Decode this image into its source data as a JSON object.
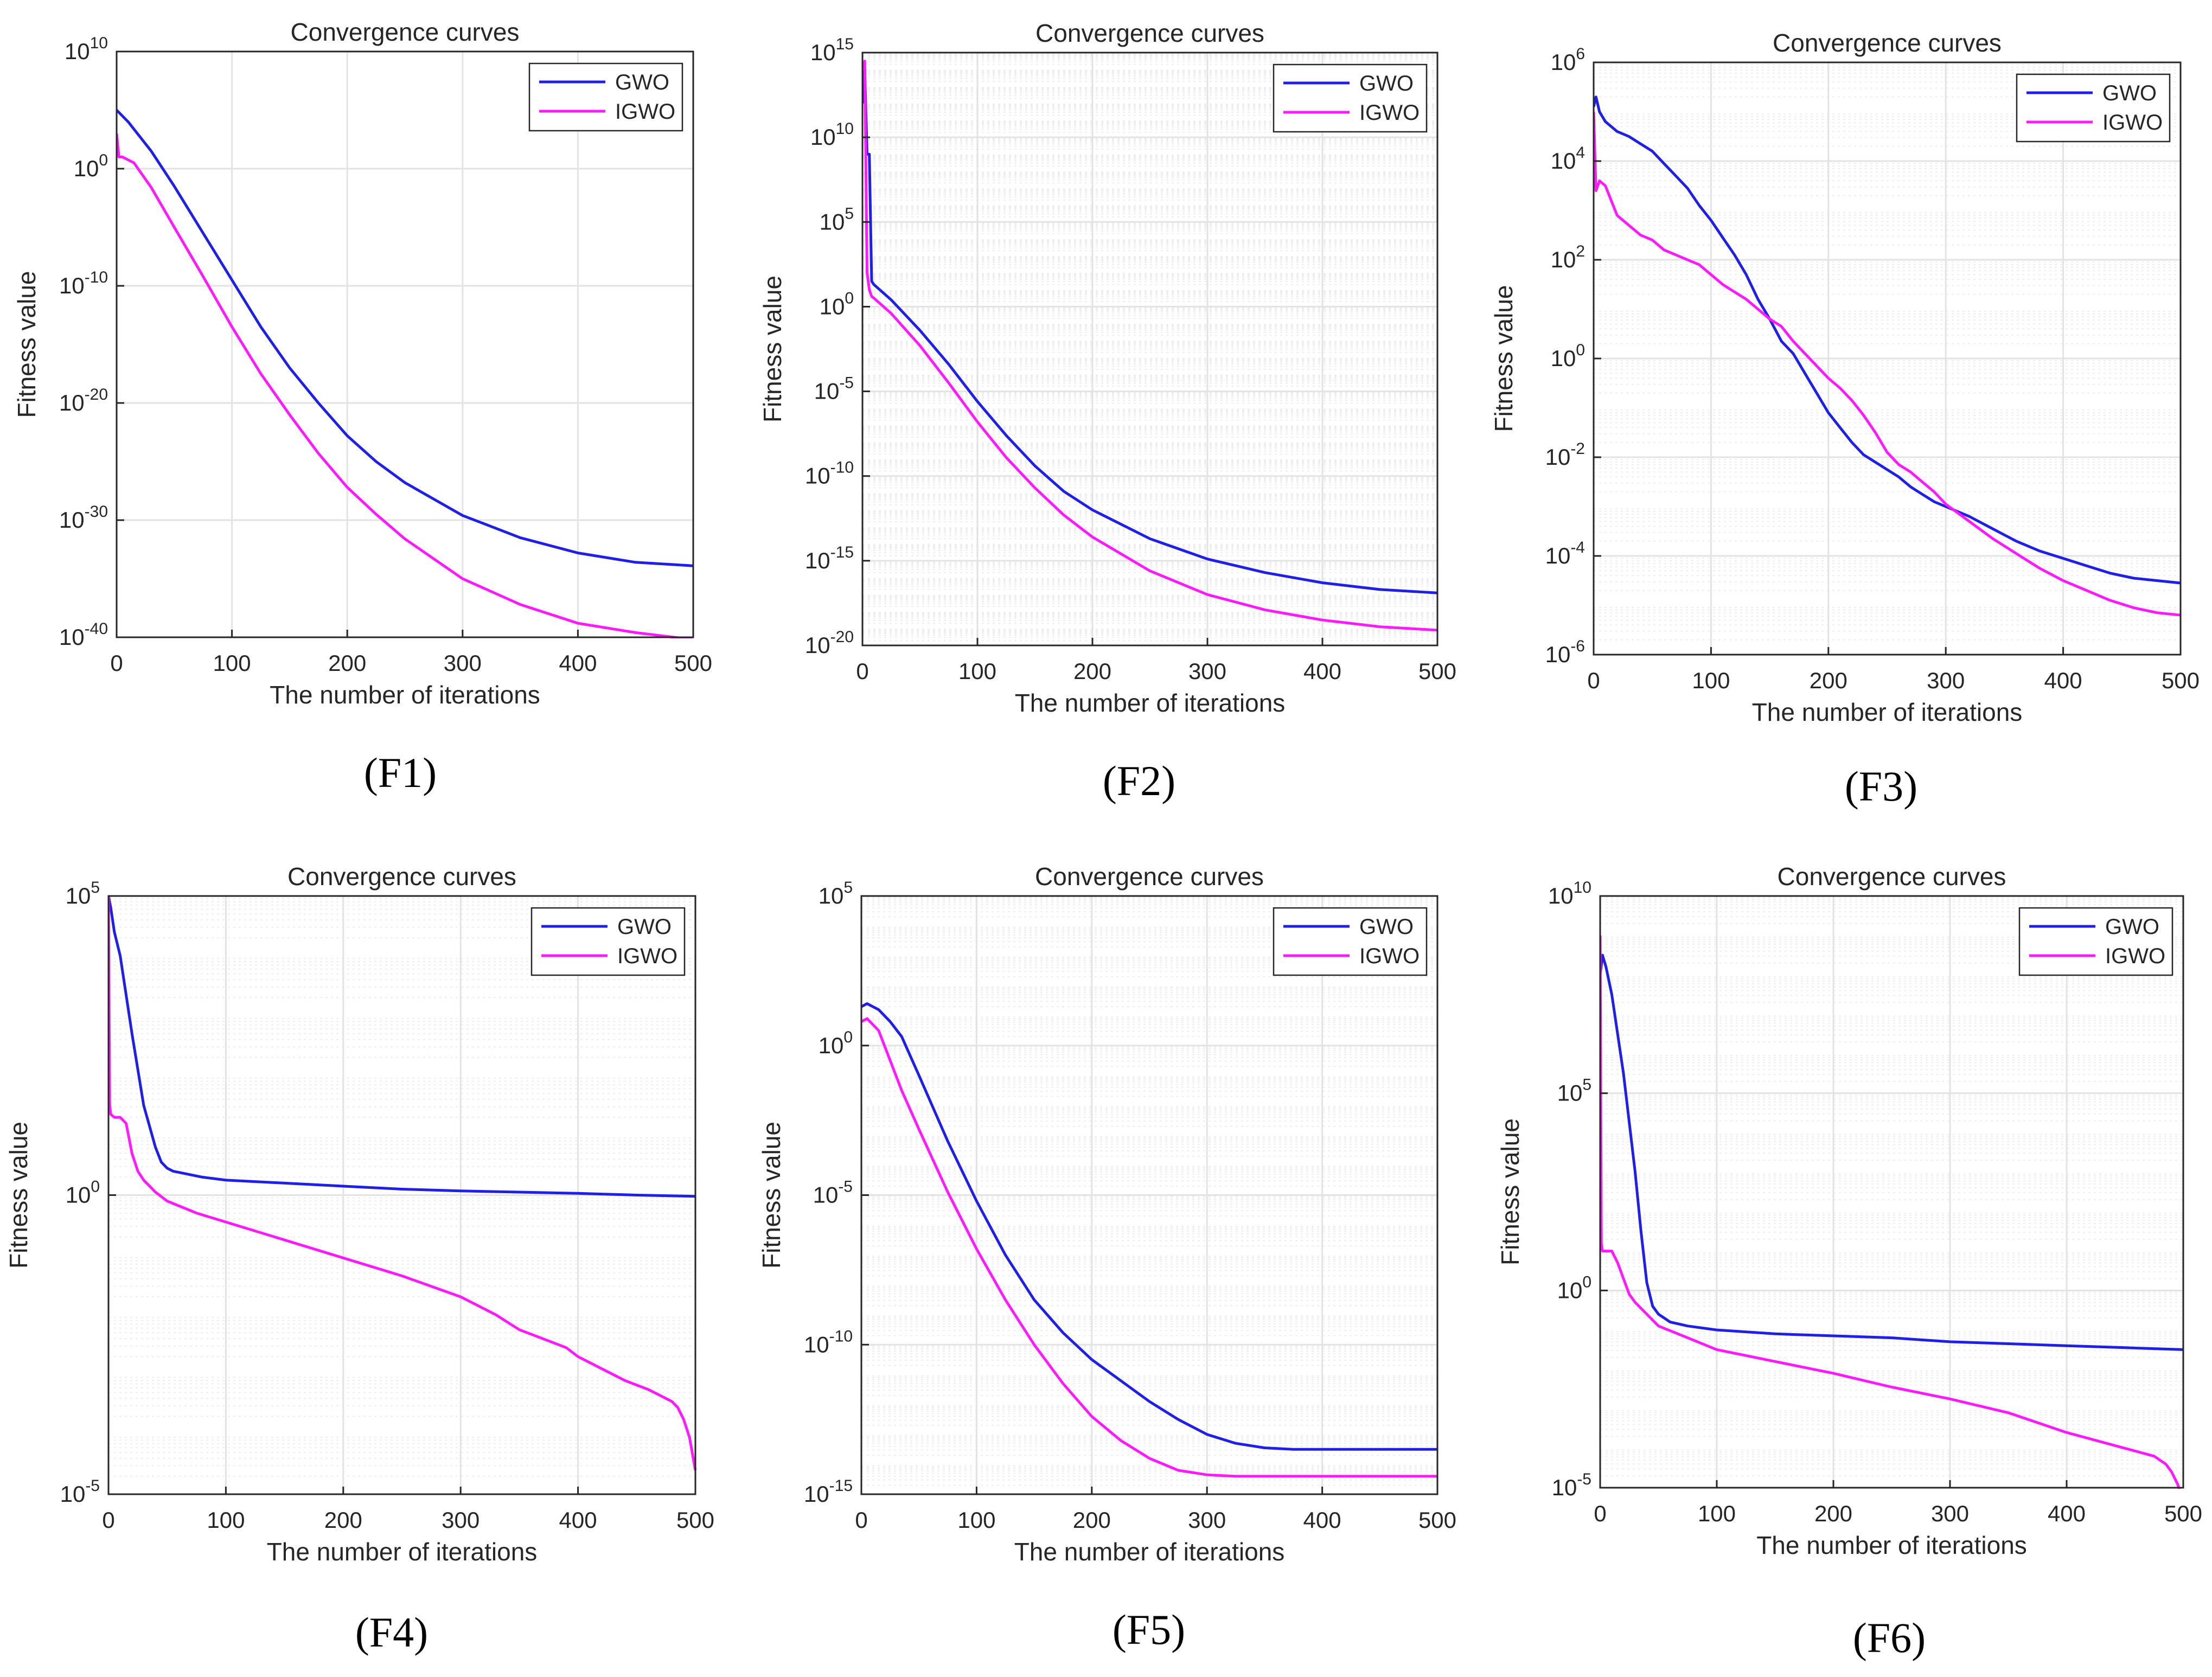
{
  "figure": {
    "captions": [
      "(F1)",
      "(F2)",
      "(F3)",
      "(F4)",
      "(F5)",
      "(F6)"
    ]
  },
  "colors": {
    "gwo": "#1f1fe6",
    "igwo": "#ff1aff",
    "grid": "#e3e3e3",
    "axis": "#262626",
    "text": "#262626"
  },
  "chart_data": [
    {
      "id": "F1",
      "type": "line",
      "title": "Convergence curves",
      "xlabel": "The number of iterations",
      "ylabel": "Fitness value",
      "yscale": "log",
      "xlim": [
        0,
        500
      ],
      "ylim_exp": [
        -40,
        10
      ],
      "xticks": [
        0,
        100,
        200,
        300,
        400,
        500
      ],
      "yticks_exp": [
        10,
        0,
        -10,
        -20,
        -30,
        -40
      ],
      "minor_grid": false,
      "legend": "top-right",
      "series": [
        {
          "name": "GWO",
          "x": [
            0,
            10,
            30,
            50,
            75,
            100,
            125,
            150,
            175,
            200,
            225,
            250,
            300,
            350,
            400,
            450,
            500
          ],
          "log10y": [
            5,
            4,
            1.5,
            -1.5,
            -5.5,
            -9.5,
            -13.5,
            -17,
            -20,
            -22.8,
            -25,
            -26.8,
            -29.6,
            -31.5,
            -32.8,
            -33.6,
            -33.9
          ]
        },
        {
          "name": "IGWO",
          "x": [
            0,
            2,
            5,
            15,
            30,
            50,
            75,
            100,
            125,
            150,
            175,
            200,
            225,
            250,
            300,
            350,
            400,
            450,
            500
          ],
          "log10y": [
            3,
            1,
            1,
            0.5,
            -1.6,
            -5,
            -9.2,
            -13.5,
            -17.5,
            -21,
            -24.3,
            -27.2,
            -29.5,
            -31.6,
            -35,
            -37.2,
            -38.8,
            -39.6,
            -40.2
          ]
        }
      ]
    },
    {
      "id": "F2",
      "type": "line",
      "title": "Convergence curves",
      "xlabel": "The number of iterations",
      "ylabel": "Fitness value",
      "yscale": "log",
      "xlim": [
        0,
        500
      ],
      "ylim_exp": [
        -20,
        15
      ],
      "xticks": [
        0,
        100,
        200,
        300,
        400,
        500
      ],
      "yticks_exp": [
        15,
        10,
        5,
        0,
        -5,
        -10,
        -15,
        -20
      ],
      "minor_grid": true,
      "legend": "top-right",
      "series": [
        {
          "name": "GWO",
          "x": [
            0,
            2,
            4,
            6,
            8,
            10,
            25,
            50,
            75,
            100,
            125,
            150,
            175,
            200,
            250,
            300,
            350,
            400,
            450,
            500
          ],
          "log10y": [
            12,
            14,
            9,
            9,
            1.5,
            1.3,
            0.4,
            -1.4,
            -3.4,
            -5.6,
            -7.6,
            -9.4,
            -10.9,
            -12,
            -13.7,
            -14.9,
            -15.7,
            -16.3,
            -16.7,
            -16.9
          ]
        },
        {
          "name": "IGWO",
          "x": [
            0,
            2,
            4,
            6,
            8,
            10,
            25,
            50,
            75,
            100,
            125,
            150,
            175,
            200,
            250,
            300,
            350,
            400,
            450,
            500
          ],
          "log10y": [
            14,
            14.5,
            2,
            1,
            0.6,
            0.5,
            -0.4,
            -2.3,
            -4.5,
            -6.8,
            -8.9,
            -10.7,
            -12.3,
            -13.6,
            -15.6,
            -17,
            -17.9,
            -18.5,
            -18.9,
            -19.1
          ]
        }
      ]
    },
    {
      "id": "F3",
      "type": "line",
      "title": "Convergence curves",
      "xlabel": "The number of iterations",
      "ylabel": "Fitness value",
      "yscale": "log",
      "xlim": [
        0,
        500
      ],
      "ylim_exp": [
        -6,
        6
      ],
      "xticks": [
        0,
        100,
        200,
        300,
        400,
        500
      ],
      "yticks_exp": [
        6,
        4,
        2,
        0,
        -2,
        -4,
        -6
      ],
      "minor_grid": true,
      "legend": "top-right",
      "series": [
        {
          "name": "GWO",
          "x": [
            0,
            2,
            5,
            10,
            20,
            30,
            40,
            50,
            60,
            70,
            80,
            90,
            100,
            110,
            120,
            130,
            140,
            150,
            160,
            170,
            180,
            190,
            200,
            210,
            220,
            230,
            240,
            250,
            260,
            270,
            280,
            290,
            300,
            320,
            340,
            360,
            380,
            400,
            420,
            440,
            460,
            480,
            500
          ],
          "log10y": [
            5.1,
            5.3,
            5,
            4.8,
            4.6,
            4.5,
            4.35,
            4.2,
            3.95,
            3.7,
            3.45,
            3.1,
            2.8,
            2.45,
            2.1,
            1.7,
            1.2,
            0.8,
            0.35,
            0.1,
            -0.3,
            -0.7,
            -1.1,
            -1.4,
            -1.7,
            -1.95,
            -2.1,
            -2.25,
            -2.4,
            -2.6,
            -2.75,
            -2.9,
            -3,
            -3.2,
            -3.45,
            -3.7,
            -3.9,
            -4.05,
            -4.2,
            -4.35,
            -4.45,
            -4.5,
            -4.55
          ]
        },
        {
          "name": "IGWO",
          "x": [
            0,
            2,
            5,
            10,
            20,
            30,
            40,
            50,
            60,
            70,
            80,
            90,
            100,
            110,
            120,
            130,
            140,
            150,
            160,
            170,
            180,
            190,
            200,
            210,
            220,
            230,
            240,
            250,
            260,
            270,
            280,
            290,
            300,
            320,
            340,
            360,
            380,
            400,
            420,
            440,
            460,
            480,
            500
          ],
          "log10y": [
            5,
            3.4,
            3.6,
            3.5,
            2.9,
            2.7,
            2.5,
            2.4,
            2.2,
            2.1,
            2,
            1.9,
            1.7,
            1.5,
            1.35,
            1.2,
            1,
            0.8,
            0.65,
            0.35,
            0.1,
            -0.15,
            -0.4,
            -0.6,
            -0.85,
            -1.15,
            -1.5,
            -1.9,
            -2.15,
            -2.3,
            -2.5,
            -2.7,
            -2.95,
            -3.3,
            -3.65,
            -3.95,
            -4.25,
            -4.5,
            -4.7,
            -4.9,
            -5.05,
            -5.15,
            -5.2
          ]
        }
      ]
    },
    {
      "id": "F4",
      "type": "line",
      "title": "Convergence curves",
      "xlabel": "The number of iterations",
      "ylabel": "Fitness value",
      "yscale": "log",
      "xlim": [
        0,
        500
      ],
      "ylim_exp": [
        -5,
        5
      ],
      "xticks": [
        0,
        100,
        200,
        300,
        400,
        500
      ],
      "yticks_exp": [
        5,
        0,
        -5
      ],
      "minor_grid": true,
      "legend": "top-right",
      "series": [
        {
          "name": "GWO",
          "x": [
            0,
            2,
            5,
            10,
            20,
            30,
            40,
            45,
            50,
            55,
            60,
            80,
            100,
            150,
            200,
            250,
            300,
            350,
            400,
            450,
            500
          ],
          "log10y": [
            5,
            4.8,
            4.4,
            4,
            2.7,
            1.5,
            0.8,
            0.55,
            0.45,
            0.4,
            0.38,
            0.3,
            0.25,
            0.2,
            0.15,
            0.1,
            0.07,
            0.05,
            0.03,
            0,
            -0.02
          ]
        },
        {
          "name": "IGWO",
          "x": [
            0,
            1,
            2,
            5,
            10,
            15,
            20,
            25,
            30,
            40,
            50,
            75,
            100,
            150,
            200,
            250,
            300,
            330,
            350,
            370,
            390,
            400,
            420,
            440,
            460,
            470,
            480,
            485,
            490,
            495,
            500
          ],
          "log10y": [
            5,
            1.5,
            1.35,
            1.3,
            1.3,
            1.2,
            0.7,
            0.4,
            0.25,
            0.05,
            -0.1,
            -0.3,
            -0.45,
            -0.75,
            -1.05,
            -1.35,
            -1.7,
            -2,
            -2.25,
            -2.4,
            -2.55,
            -2.7,
            -2.9,
            -3.1,
            -3.25,
            -3.35,
            -3.45,
            -3.55,
            -3.75,
            -4.05,
            -4.6
          ]
        }
      ]
    },
    {
      "id": "F5",
      "type": "line",
      "title": "Convergence curves",
      "xlabel": "The number of iterations",
      "ylabel": "Fitness value",
      "yscale": "log",
      "xlim": [
        0,
        500
      ],
      "ylim_exp": [
        -15,
        5
      ],
      "xticks": [
        0,
        100,
        200,
        300,
        400,
        500
      ],
      "yticks_exp": [
        5,
        0,
        -5,
        -10,
        -15
      ],
      "minor_grid": true,
      "legend": "top-right",
      "series": [
        {
          "name": "GWO",
          "x": [
            0,
            5,
            15,
            25,
            35,
            50,
            75,
            100,
            125,
            150,
            175,
            200,
            225,
            250,
            275,
            300,
            325,
            350,
            375,
            400,
            450,
            500
          ],
          "log10y": [
            1.3,
            1.4,
            1.2,
            0.8,
            0.3,
            -1,
            -3.2,
            -5.2,
            -7,
            -8.5,
            -9.6,
            -10.5,
            -11.2,
            -11.9,
            -12.5,
            -13,
            -13.3,
            -13.45,
            -13.5,
            -13.5,
            -13.5,
            -13.5
          ]
        },
        {
          "name": "IGWO",
          "x": [
            0,
            5,
            15,
            25,
            35,
            50,
            75,
            100,
            125,
            150,
            175,
            200,
            225,
            250,
            275,
            300,
            325,
            350,
            400,
            450,
            500
          ],
          "log10y": [
            0.8,
            0.9,
            0.5,
            -0.5,
            -1.5,
            -2.8,
            -4.9,
            -6.8,
            -8.5,
            -10,
            -11.3,
            -12.4,
            -13.2,
            -13.8,
            -14.2,
            -14.35,
            -14.4,
            -14.4,
            -14.4,
            -14.4,
            -14.4
          ]
        }
      ]
    },
    {
      "id": "F6",
      "type": "line",
      "title": "Convergence curves",
      "xlabel": "The number of iterations",
      "ylabel": "Fitness value",
      "yscale": "log",
      "xlim": [
        0,
        500
      ],
      "ylim_exp": [
        -5,
        10
      ],
      "xticks": [
        0,
        100,
        200,
        300,
        400,
        500
      ],
      "yticks_exp": [
        10,
        5,
        0,
        -5
      ],
      "minor_grid": true,
      "legend": "top-right",
      "series": [
        {
          "name": "GWO",
          "x": [
            0,
            2,
            5,
            10,
            20,
            30,
            35,
            40,
            45,
            50,
            60,
            75,
            100,
            150,
            200,
            250,
            300,
            350,
            400,
            450,
            500
          ],
          "log10y": [
            8,
            8.5,
            8.2,
            7.5,
            5.5,
            3,
            1.5,
            0.2,
            -0.4,
            -0.6,
            -0.8,
            -0.9,
            -1,
            -1.1,
            -1.15,
            -1.2,
            -1.3,
            -1.35,
            -1.4,
            -1.45,
            -1.5
          ]
        },
        {
          "name": "IGWO",
          "x": [
            0,
            1,
            2,
            5,
            10,
            15,
            20,
            25,
            30,
            40,
            50,
            75,
            100,
            150,
            200,
            250,
            300,
            350,
            400,
            450,
            475,
            485,
            490,
            495,
            500
          ],
          "log10y": [
            9,
            1.2,
            1,
            1,
            1,
            0.7,
            0.3,
            -0.1,
            -0.3,
            -0.6,
            -0.9,
            -1.2,
            -1.5,
            -1.8,
            -2.1,
            -2.45,
            -2.75,
            -3.1,
            -3.6,
            -4,
            -4.2,
            -4.4,
            -4.6,
            -4.9,
            -5.3
          ]
        }
      ]
    }
  ]
}
